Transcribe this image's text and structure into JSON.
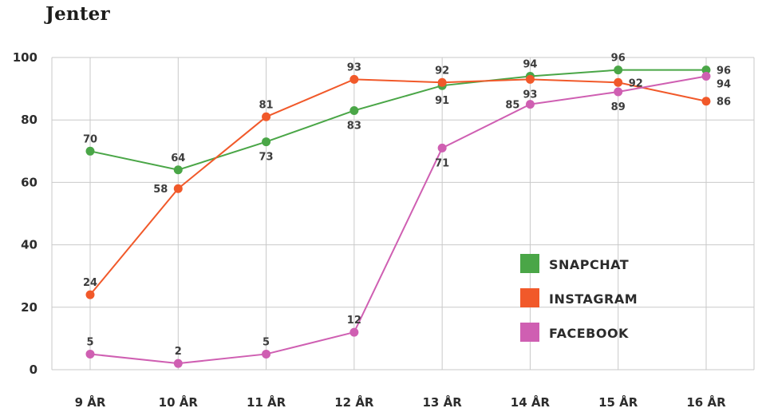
{
  "page": {
    "background": "#ffffff"
  },
  "chart_data": {
    "type": "line",
    "title": "Jenter",
    "categories": [
      "9 ÅR",
      "10 ÅR",
      "11 ÅR",
      "12 ÅR",
      "13 ÅR",
      "14 ÅR",
      "15 ÅR",
      "16 ÅR"
    ],
    "y_ticks": [
      0,
      20,
      40,
      60,
      80,
      100
    ],
    "ylim": [
      0,
      100
    ],
    "grid": true,
    "legend_position": "inside-right",
    "series": [
      {
        "name": "SNAPCHAT",
        "color": "#4aa647",
        "values": [
          70,
          64,
          73,
          83,
          91,
          94,
          96,
          96
        ],
        "label_pos": [
          "above",
          "above",
          "below",
          "below",
          "below",
          "above",
          "above",
          "right"
        ]
      },
      {
        "name": "INSTAGRAM",
        "color": "#f1592a",
        "values": [
          24,
          58,
          81,
          93,
          92,
          93,
          92,
          86
        ],
        "label_pos": [
          "above",
          "left",
          "above",
          "above",
          "above",
          "below",
          "right",
          "right"
        ]
      },
      {
        "name": "FACEBOOK",
        "color": "#cf5fb2",
        "values": [
          5,
          2,
          5,
          12,
          71,
          85,
          89,
          94
        ],
        "label_pos": [
          "above",
          "above",
          "above",
          "above",
          "below",
          "left",
          "below",
          "right-below"
        ]
      }
    ]
  }
}
